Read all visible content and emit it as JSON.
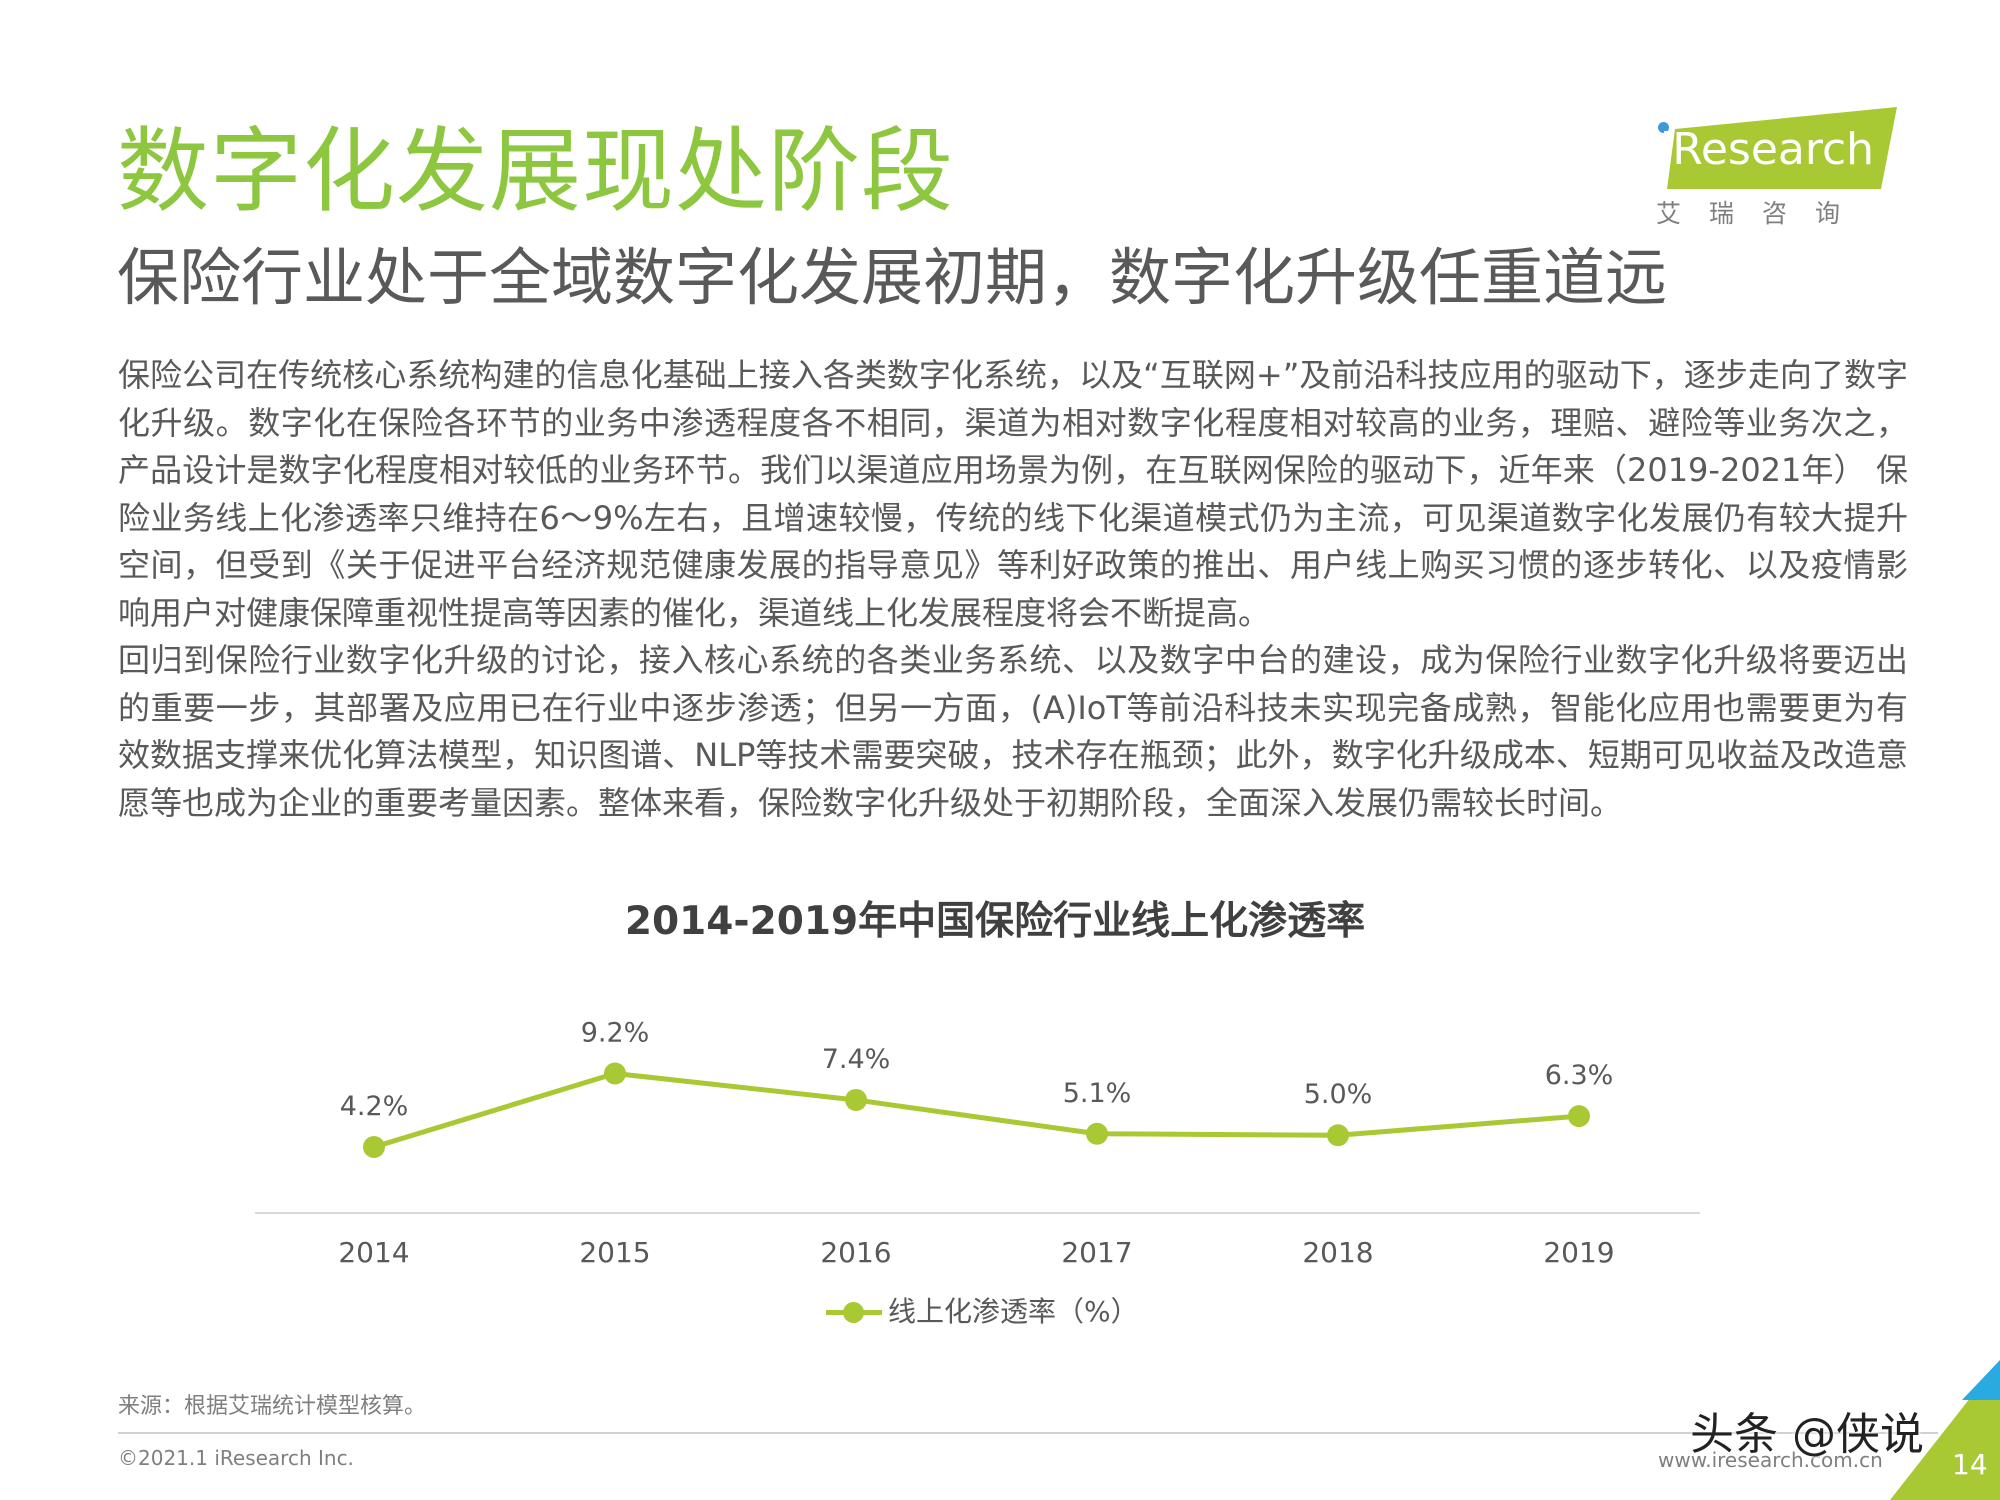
{
  "header": {
    "title": "数字化发展现处阶段",
    "subtitle": "保险行业处于全域数字化发展初期，数字化升级任重道远"
  },
  "logo": {
    "text": "iResearch",
    "cn": "艾瑞咨询",
    "brand_color": "#a8c933"
  },
  "body": {
    "paragraphs": [
      "保险公司在传统核心系统构建的信息化基础上接入各类数字化系统，以及“互联网+”及前沿科技应用的驱动下，逐步走向了数字化升级。数字化在保险各环节的业务中渗透程度各不相同，渠道为相对数字化程度相对较高的业务，理赔、避险等业务次之，产品设计是数字化程度相对较低的业务环节。我们以渠道应用场景为例，在互联网保险的驱动下，近年来（2019-2021年） 保险业务线上化渗透率只维持在6～9%左右，且增速较慢，传统的线下化渠道模式仍为主流，可见渠道数字化发展仍有较大提升空间，但受到《关于促进平台经济规范健康发展的指导意见》等利好政策的推出、用户线上购买习惯的逐步转化、以及疫情影响用户对健康保障重视性提高等因素的催化，渠道线上化发展程度将会不断提高。",
      "回归到保险行业数字化升级的讨论，接入核心系统的各类业务系统、以及数字中台的建设，成为保险行业数字化升级将要迈出的重要一步，其部署及应用已在行业中逐步渗透；但另一方面，(A)IoT等前沿科技未实现完备成熟，智能化应用也需要更为有效数据支撑来优化算法模型，知识图谱、NLP等技术需要突破，技术存在瓶颈；此外，数字化升级成本、短期可见收益及改造意愿等也成为企业的重要考量因素。整体来看，保险数字化升级处于初期阶段，全面深入发展仍需较长时间。"
    ]
  },
  "chart_data": {
    "type": "line",
    "title": "2014-2019年中国保险行业线上化渗透率",
    "categories": [
      "2014",
      "2015",
      "2016",
      "2017",
      "2018",
      "2019"
    ],
    "series": [
      {
        "name": "线上化渗透率（%）",
        "values": [
          4.2,
          9.2,
          7.4,
          5.1,
          5.0,
          6.3
        ],
        "labels": [
          "4.2%",
          "9.2%",
          "7.4%",
          "5.1%",
          "5.0%",
          "6.3%"
        ],
        "color": "#a8c933"
      }
    ],
    "xlabel": "",
    "ylabel": "",
    "ylim": [
      0,
      10
    ],
    "grid": false,
    "y_axis_visible": false,
    "legend_position": "bottom-center"
  },
  "footer": {
    "source": "来源：根据艾瑞统计模型核算。",
    "copyright": "©2021.1 iResearch Inc.",
    "url": "www.iresearch.com.cn",
    "page_number": "14",
    "watermark": "头条 @侠说"
  }
}
